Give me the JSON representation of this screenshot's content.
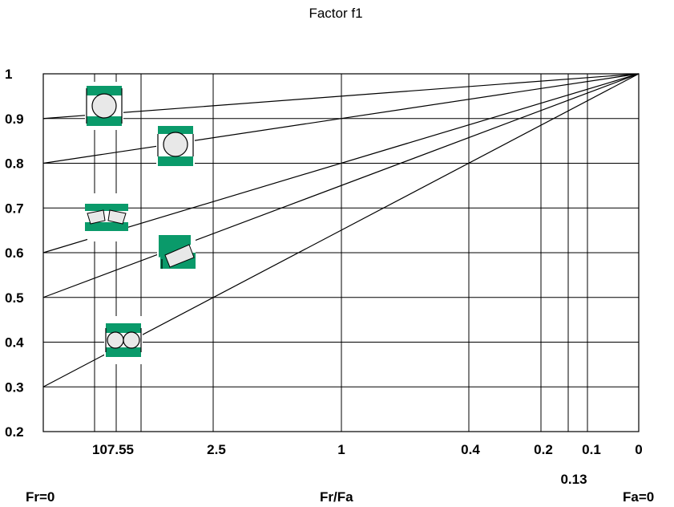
{
  "chart_data": {
    "type": "line",
    "title": "Factor f1",
    "x_axis_label_left": "Fr=0",
    "x_axis_label_center": "Fr/Fa",
    "x_axis_label_right": "Fa=0",
    "x_tick_labels": [
      "10",
      "7.5",
      "5",
      "2.5",
      "1",
      "0.4",
      "0.2",
      "0.13",
      "0.1",
      "0"
    ],
    "x_tick_display": [
      "107.55",
      "2.5",
      "1",
      "0.4",
      "0.2",
      "0.13",
      "0.1",
      "0"
    ],
    "y_tick_labels": [
      "1",
      "0.9",
      "0.8",
      "0.7",
      "0.6",
      "0.5",
      "0.4",
      "0.3",
      "0.2"
    ],
    "ylim": [
      0.2,
      1
    ],
    "grid": true,
    "series": [
      {
        "bearing_icon": "deep-groove-ball-bearing-icon",
        "x": [
          "Fr=0",
          "0"
        ],
        "y": [
          0.9,
          1.0
        ]
      },
      {
        "bearing_icon": "angular-contact-ball-bearing-icon",
        "x": [
          "Fr=0",
          "0"
        ],
        "y": [
          0.8,
          1.0
        ]
      },
      {
        "bearing_icon": "spherical-roller-bearing-icon",
        "x": [
          "Fr=0",
          "0"
        ],
        "y": [
          0.6,
          1.0
        ]
      },
      {
        "bearing_icon": "tapered-roller-bearing-icon",
        "x": [
          "Fr=0",
          "0"
        ],
        "y": [
          0.5,
          1.0
        ]
      },
      {
        "bearing_icon": "double-row-ball-bearing-icon",
        "x": [
          "Fr=0",
          "0"
        ],
        "y": [
          0.3,
          1.0
        ]
      }
    ],
    "colors": {
      "bearing_ring": "#0a9a6a",
      "bearing_element": "#e8e8e8",
      "line": "#000000"
    }
  }
}
